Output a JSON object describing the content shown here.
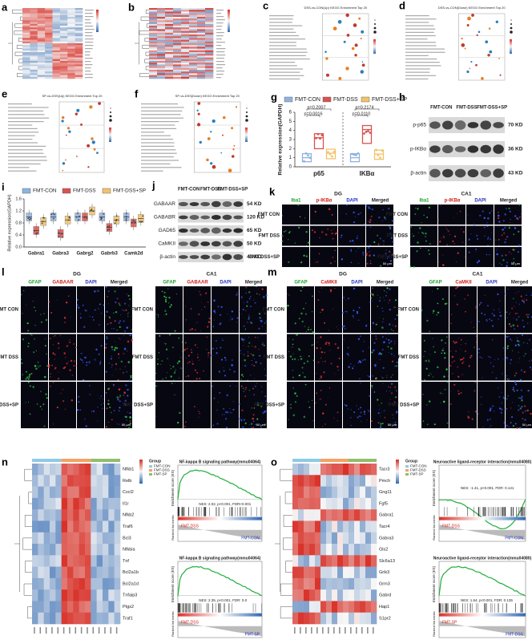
{
  "panels": {
    "a": "a",
    "b": "b",
    "c": "c",
    "d": "d",
    "e": "e",
    "f": "f",
    "g": "g",
    "h": "h",
    "i": "i",
    "j": "j",
    "k": "k",
    "l": "l",
    "m": "m",
    "n": "n",
    "o": "o"
  },
  "enrichment": {
    "c": "DSS-vs-CON(Up) KEGG Enrichment Top 20",
    "d": "DSS-vs-CON(Down) KEGG Enrichment Top 20",
    "e": "SP-vs-DSS(Up) KEGG Enrichment Top 20",
    "f": "SP-vs-DSS(Down) KEGG Enrichment Top 20"
  },
  "groups": [
    "FMT-CON",
    "FMT-DSS",
    "FMT-DSS+SP"
  ],
  "group_colors": [
    "#8fb3e0",
    "#d9534f",
    "#f3c26b"
  ],
  "panel_g": {
    "type": "bar",
    "ylabel": "Relative expression(GAPDH)",
    "categories": [
      "p65",
      "IKBα"
    ],
    "series": [
      {
        "name": "FMT-CON",
        "values": [
          1.0,
          1.0
        ]
      },
      {
        "name": "FMT-DSS",
        "values": [
          3.2,
          4.1
        ]
      },
      {
        "name": "FMT-DSS+SP",
        "values": [
          1.5,
          1.4
        ]
      }
    ],
    "ylim": [
      0,
      6
    ],
    "yticks": [
      0,
      1,
      2,
      3,
      4,
      5,
      6
    ],
    "pvalues": [
      "p=0.2007",
      "p=0.0016",
      "p=0.2174",
      "p=0.0110"
    ]
  },
  "panel_h": {
    "columns": [
      "FMT-CON",
      "FMT-DSS",
      "FMT-DSS+SP"
    ],
    "rows": [
      "p-p65",
      "p-IKBα",
      "β-actin"
    ],
    "sizes": [
      "70 KD",
      "36 KD",
      "43 KD"
    ]
  },
  "panel_i": {
    "type": "box",
    "ylabel": "Relative expression(GAPDH)",
    "categories": [
      "Gabra1",
      "Gabra3",
      "Gabrg2",
      "Gabrb3",
      "Camk2d"
    ],
    "series": [
      {
        "name": "FMT-CON",
        "values": [
          1.0,
          1.0,
          1.0,
          1.0,
          1.0
        ]
      },
      {
        "name": "FMT-DSS",
        "values": [
          0.55,
          0.45,
          1.0,
          0.65,
          0.8
        ]
      },
      {
        "name": "FMT-DSS+SP",
        "values": [
          0.85,
          0.9,
          1.2,
          0.9,
          0.95
        ]
      }
    ],
    "ylim": [
      0,
      1.6
    ],
    "yticks": [
      {
        "value": 0,
        "label": "0.0"
      },
      {
        "value": 0.4,
        "label": "0.4"
      },
      {
        "value": 0.8,
        "label": "0.8"
      },
      {
        "value": 1.2,
        "label": "1.2"
      },
      {
        "value": 1.6,
        "label": "1.6"
      }
    ]
  },
  "panel_j": {
    "columns": [
      "FMT-CON",
      "FMT-DSS",
      "FMT-DSS+SP"
    ],
    "rows": [
      "GABAAR",
      "GABABR",
      "GAD65",
      "CaMKII",
      "β-actin"
    ],
    "sizes": [
      "54 KD",
      "120 KD",
      "65 KD",
      "50 KD",
      "43 KD"
    ]
  },
  "regions": [
    "DG",
    "CA1"
  ],
  "rows_if": [
    "FMT CON",
    "FMT DSS",
    "FMT DSS+SP"
  ],
  "scale": "50 μm",
  "panel_k": [
    "Iba1",
    "p-IKBα",
    "DAPI",
    "Merged"
  ],
  "panel_l": [
    "GFAP",
    "GABAAR",
    "DAPI",
    "Merged"
  ],
  "panel_m": [
    "GFAP",
    "CaMKII",
    "DAPI",
    "Merged"
  ],
  "heat_legend": {
    "title": "Group",
    "groups": [
      "FMT-CON",
      "FMT-DSS",
      "FMT-SP"
    ]
  },
  "panel_n": {
    "genes": [
      "Nfkb1",
      "Relb",
      "Cxcl2",
      "Il1r",
      "Nfkb2",
      "Traf6",
      "Bcl3",
      "Nfkbia",
      "Tnf",
      "Bcl2a1b",
      "Bcl2a1d",
      "Tnfaip3",
      "Ptgs2",
      "Traf1"
    ],
    "gsea": [
      {
        "title": "NF-kappa B signaling pathway(mmu04064)",
        "stats": "NES: 2.02, p<0.001, FDR<0.001",
        "left": "FMT-DSS",
        "right": "FMT-CON"
      },
      {
        "title": "NF-kappa B signaling pathway(mmu04064)",
        "stats": "NES: 2.35, p<0.001, FDR: 0.0",
        "left": "FMT-DSS",
        "right": "FMT-SP"
      }
    ]
  },
  "panel_o": {
    "genes": [
      "Tacr3",
      "Pmch",
      "Gng11",
      "Fgf5",
      "Gabra1",
      "Tacr4",
      "Gabra3",
      "Gls2",
      "Slc6a13",
      "Grik3",
      "Grm3",
      "Gabrd",
      "Hap1",
      "S1pr2"
    ],
    "gsea": [
      {
        "title": "Neuroactive ligand-receptor interaction(mmu04080)",
        "stats": "NES: -1.41, p<0.001, FDR: 0.141",
        "left": "FMT-DSS",
        "right": "FMT-CON"
      },
      {
        "title": "Neuroactive ligand-receptor interaction(mmu04080)",
        "stats": "NES: 1.64, p<0.001, FDR: 0.135",
        "left": "FMT-SP",
        "right": "FMT-DSS"
      }
    ]
  },
  "gsea_axis": {
    "y": "Enrichment score (ES)",
    "y2": "Ranked list metric"
  }
}
